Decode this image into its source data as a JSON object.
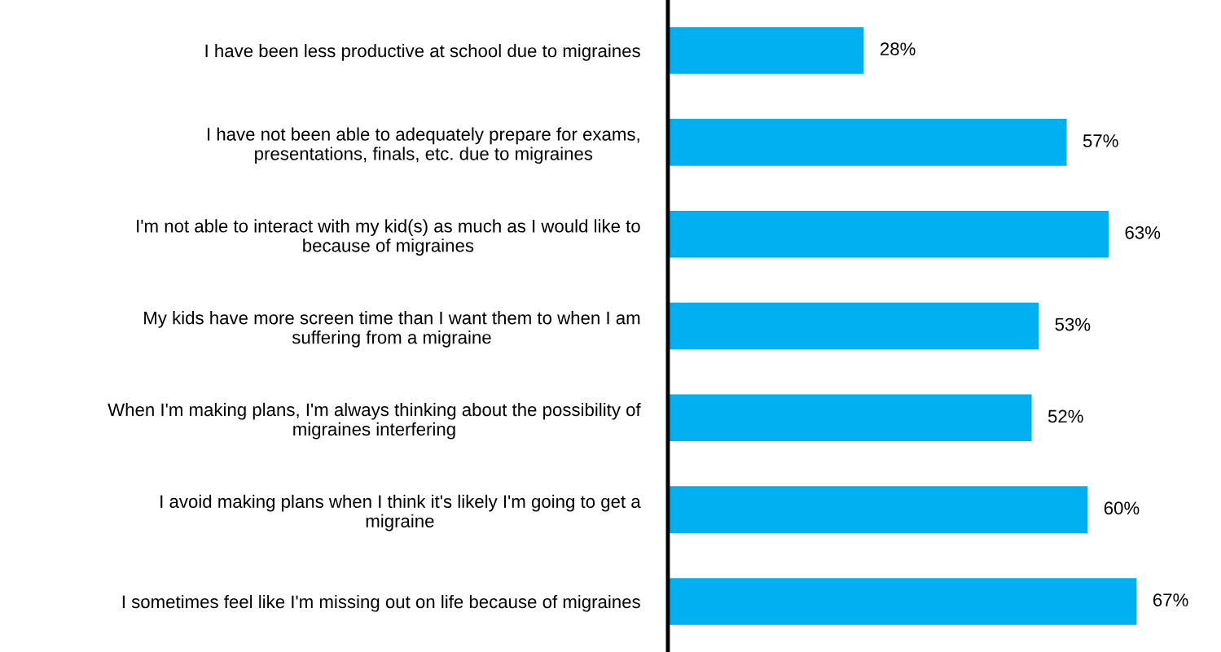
{
  "chart_data": {
    "type": "bar",
    "orientation": "horizontal",
    "categories": [
      "I have been less productive at school due to migraines",
      "I have not been able to adequately prepare for exams,\npresentations, finals, etc. due to migraines",
      "I'm not able to interact with my kid(s) as much as I would like to\nbecause of migraines",
      "My kids have more screen time than I want them to when I am\nsuffering from a migraine",
      "When I'm making plans, I'm always thinking about the possibility of\nmigraines interfering",
      "I avoid making plans when I think it's likely I'm going to get a\nmigraine",
      "I sometimes feel like I'm missing out on life because of migraines"
    ],
    "values": [
      28,
      57,
      63,
      53,
      52,
      60,
      67
    ],
    "value_labels": [
      "28%",
      "57%",
      "63%",
      "53%",
      "52%",
      "60%",
      "67%"
    ],
    "color": "#00b0f0",
    "tick_labels": "y",
    "grid": false,
    "legend": false
  }
}
